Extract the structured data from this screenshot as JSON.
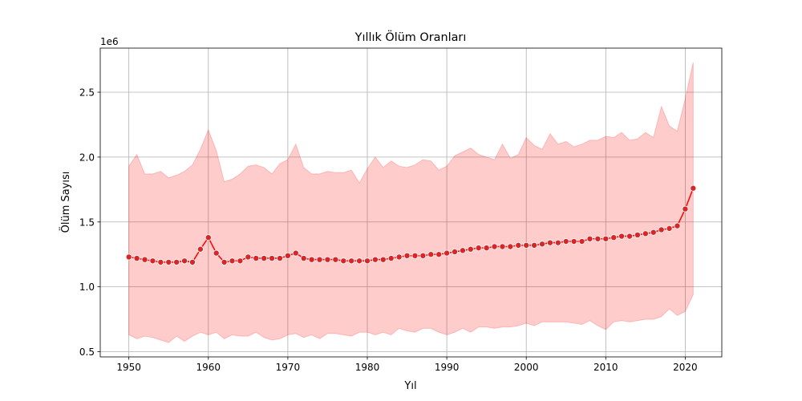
{
  "chart_data": {
    "type": "line",
    "title": "Yıllık Ölüm Oranları",
    "xlabel": "Yıl",
    "ylabel": "Ölüm Sayısı",
    "y_offset_label": "1e6",
    "xlim": [
      1946.4,
      2024.6
    ],
    "ylim": [
      0.46,
      2.84
    ],
    "x_ticks": [
      1950,
      1960,
      1970,
      1980,
      1990,
      2000,
      2010,
      2020
    ],
    "y_ticks": [
      0.5,
      1.0,
      1.5,
      2.0,
      2.5
    ],
    "y_tick_labels": [
      "0.5",
      "1.0",
      "1.5",
      "2.0",
      "2.5"
    ],
    "grid": true,
    "line_color": "#ff0000",
    "marker_fill": "#d62728",
    "band_color": "#ff0000",
    "band_opacity": 0.2,
    "x": [
      1950,
      1951,
      1952,
      1953,
      1954,
      1955,
      1956,
      1957,
      1958,
      1959,
      1960,
      1961,
      1962,
      1963,
      1964,
      1965,
      1966,
      1967,
      1968,
      1969,
      1970,
      1971,
      1972,
      1973,
      1974,
      1975,
      1976,
      1977,
      1978,
      1979,
      1980,
      1981,
      1982,
      1983,
      1984,
      1985,
      1986,
      1987,
      1988,
      1989,
      1990,
      1991,
      1992,
      1993,
      1994,
      1995,
      1996,
      1997,
      1998,
      1999,
      2000,
      2001,
      2002,
      2003,
      2004,
      2005,
      2006,
      2007,
      2008,
      2009,
      2010,
      2011,
      2012,
      2013,
      2014,
      2015,
      2016,
      2017,
      2018,
      2019,
      2020,
      2021
    ],
    "series": [
      {
        "values": [
          1.23,
          1.22,
          1.21,
          1.2,
          1.19,
          1.19,
          1.19,
          1.2,
          1.19,
          1.29,
          1.38,
          1.26,
          1.19,
          1.2,
          1.2,
          1.23,
          1.22,
          1.22,
          1.22,
          1.22,
          1.24,
          1.26,
          1.22,
          1.21,
          1.21,
          1.21,
          1.21,
          1.2,
          1.2,
          1.2,
          1.2,
          1.21,
          1.21,
          1.22,
          1.23,
          1.24,
          1.24,
          1.24,
          1.25,
          1.25,
          1.26,
          1.27,
          1.28,
          1.29,
          1.3,
          1.3,
          1.31,
          1.31,
          1.31,
          1.32,
          1.32,
          1.32,
          1.33,
          1.34,
          1.34,
          1.35,
          1.35,
          1.35,
          1.37,
          1.37,
          1.37,
          1.38,
          1.39,
          1.39,
          1.4,
          1.41,
          1.42,
          1.44,
          1.45,
          1.47,
          1.6,
          1.76
        ],
        "upper": [
          1.93,
          2.02,
          1.87,
          1.87,
          1.89,
          1.84,
          1.86,
          1.89,
          1.94,
          2.06,
          2.21,
          2.05,
          1.81,
          1.83,
          1.87,
          1.93,
          1.94,
          1.92,
          1.87,
          1.95,
          1.98,
          2.1,
          1.92,
          1.87,
          1.87,
          1.89,
          1.88,
          1.88,
          1.9,
          1.8,
          1.91,
          2.0,
          1.92,
          1.97,
          1.93,
          1.92,
          1.94,
          1.98,
          1.97,
          1.9,
          1.93,
          2.01,
          2.04,
          2.07,
          2.02,
          2.0,
          1.98,
          2.1,
          1.99,
          2.02,
          2.15,
          2.09,
          2.06,
          2.18,
          2.1,
          2.12,
          2.08,
          2.1,
          2.13,
          2.13,
          2.16,
          2.15,
          2.19,
          2.13,
          2.14,
          2.19,
          2.15,
          2.39,
          2.24,
          2.2,
          2.45,
          2.73
        ],
        "lower": [
          0.63,
          0.6,
          0.62,
          0.61,
          0.59,
          0.57,
          0.62,
          0.58,
          0.62,
          0.65,
          0.63,
          0.65,
          0.6,
          0.63,
          0.62,
          0.62,
          0.65,
          0.61,
          0.59,
          0.6,
          0.63,
          0.64,
          0.61,
          0.63,
          0.6,
          0.64,
          0.64,
          0.63,
          0.62,
          0.65,
          0.65,
          0.63,
          0.65,
          0.63,
          0.68,
          0.66,
          0.65,
          0.68,
          0.68,
          0.65,
          0.63,
          0.65,
          0.68,
          0.65,
          0.69,
          0.69,
          0.68,
          0.69,
          0.69,
          0.7,
          0.72,
          0.7,
          0.73,
          0.73,
          0.73,
          0.73,
          0.72,
          0.71,
          0.74,
          0.7,
          0.67,
          0.73,
          0.74,
          0.73,
          0.74,
          0.75,
          0.75,
          0.77,
          0.83,
          0.78,
          0.81,
          0.94
        ]
      }
    ]
  }
}
